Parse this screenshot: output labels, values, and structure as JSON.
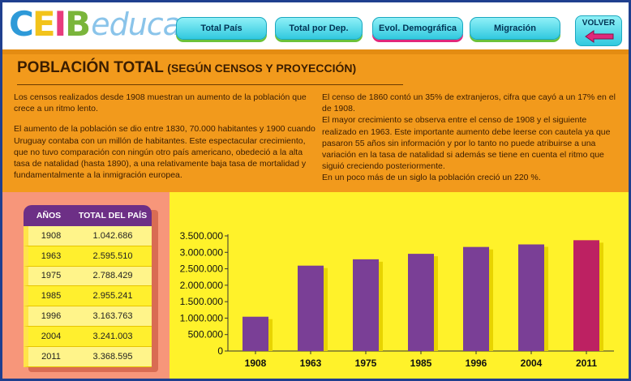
{
  "header": {
    "logo": {
      "part1": "C",
      "part2": "E",
      "part3": "I",
      "part4": "B",
      "part5": "educa"
    },
    "nav": [
      {
        "label": "Total País"
      },
      {
        "label": "Total por Dep."
      },
      {
        "label": "Evol. Demográfica"
      },
      {
        "label": "Migración"
      }
    ],
    "back_label": "VOLVER"
  },
  "title": {
    "main": "POBLACIÓN TOTAL",
    "sub": "(SEGÚN CENSOS Y PROYECCIÓN)"
  },
  "text_left": [
    "Los censos realizados desde 1908 muestran un aumento de la población que crece a un ritmo lento.",
    "El aumento de la población se dio entre 1830, 70.000 habitantes y 1900 cuando Uruguay contaba con un millón de habitantes. Este espectacular crecimiento, que no tuvo comparación con ningún otro país americano, obedeció a la alta tasa de natalidad (hasta 1890), a una relativamente baja tasa de mortalidad y fundamentalmente a la inmigración europea."
  ],
  "text_right": [
    "El censo de 1860 contó un 35% de extranjeros, cifra que cayó a un 17% en el de 1908.",
    "El mayor crecimiento se observa entre el censo de 1908 y el siguiente realizado en 1963. Este importante aumento debe leerse con cautela ya que pasaron 55 años sin información y por lo tanto no puede atribuirse a una variación en la tasa de natalidad si además se tiene en cuenta el ritmo que siguió creciendo posteriormente.",
    "En un poco más de un siglo la población creció un 220 %."
  ],
  "table": {
    "headers": [
      "AÑOS",
      "TOTAL DEL PAÍS"
    ],
    "rows": [
      [
        "1908",
        "1.042.686"
      ],
      [
        "1963",
        "2.595.510"
      ],
      [
        "1975",
        "2.788.429"
      ],
      [
        "1985",
        "2.955.241"
      ],
      [
        "1996",
        "3.163.763"
      ],
      [
        "2004",
        "3.241.003"
      ],
      [
        "2011",
        "3.368.595"
      ]
    ]
  },
  "colors": {
    "bar": "#7a3f96",
    "bar_last": "#bd2162",
    "header_bg": "#6d2f86",
    "panel_orange": "#f29a1c",
    "panel_yellow": "#fff22a"
  },
  "chart_data": {
    "type": "bar",
    "categories": [
      "1908",
      "1963",
      "1975",
      "1985",
      "1996",
      "2004",
      "2011"
    ],
    "values": [
      1042686,
      2595510,
      2788429,
      2955241,
      3163763,
      3241003,
      3368595
    ],
    "ylim": [
      0,
      3500000
    ],
    "ytick_labels": [
      "0",
      "500.000",
      "1.000.000",
      "1.500.000",
      "2.000.000",
      "2.500.000",
      "3.000.000",
      "3.500.000"
    ],
    "ytick_values": [
      0,
      500000,
      1000000,
      1500000,
      2000000,
      2500000,
      3000000,
      3500000
    ],
    "highlight_last": true,
    "grid": false
  }
}
